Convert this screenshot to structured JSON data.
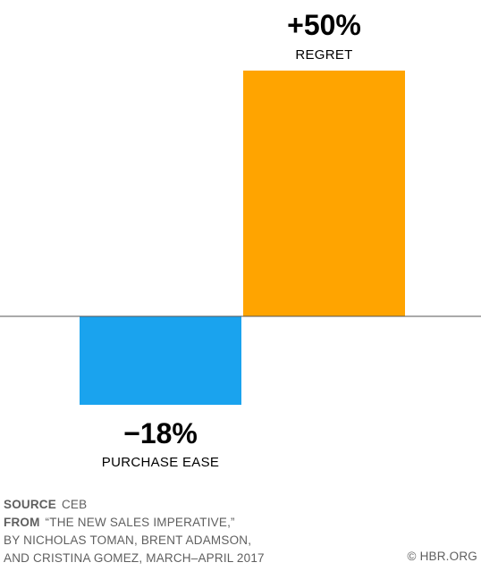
{
  "chart_data": {
    "type": "bar",
    "categories": [
      "PURCHASE EASE",
      "REGRET"
    ],
    "values": [
      -18,
      50
    ],
    "value_labels": [
      "−18%",
      "+50%"
    ],
    "colors": [
      "#1aa3ee",
      "#ffa400"
    ],
    "ylim": [
      -25,
      52
    ],
    "grid": false,
    "legend": "none"
  },
  "footer": {
    "source_key": "SOURCE",
    "source_value": "CEB",
    "from_key": "FROM",
    "from_line1": "“THE NEW SALES IMPERATIVE,”",
    "from_line2": "BY NICHOLAS TOMAN, BRENT ADAMSON,",
    "from_line3": "AND CRISTINA GOMEZ, MARCH–APRIL 2017",
    "credit": "© HBR.ORG"
  }
}
